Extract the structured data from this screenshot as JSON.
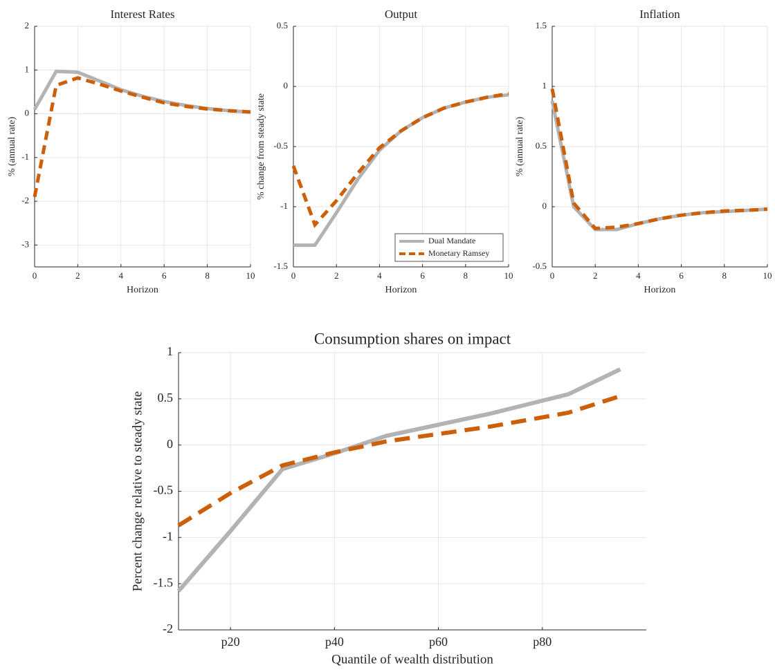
{
  "chart_data": [
    {
      "type": "line",
      "title": "Interest Rates",
      "xlabel": "Horizon",
      "ylabel": "% (annual rate)",
      "x": [
        0,
        1,
        2,
        3,
        4,
        5,
        6,
        7,
        8,
        9,
        10
      ],
      "series": [
        {
          "color": "#b3b3b3",
          "style": "solid",
          "values": [
            0.1,
            0.97,
            0.95,
            0.75,
            0.55,
            0.4,
            0.28,
            0.19,
            0.12,
            0.07,
            0.04
          ]
        },
        {
          "color": "#cc5f08",
          "style": "dashed",
          "values": [
            -1.9,
            0.65,
            0.82,
            0.68,
            0.52,
            0.38,
            0.25,
            0.17,
            0.11,
            0.07,
            0.04
          ]
        }
      ],
      "xlim": [
        0,
        10
      ],
      "xticks": [
        0,
        2,
        4,
        6,
        8,
        10
      ],
      "ylim": [
        -3.5,
        2
      ],
      "yticks": [
        -3,
        -2,
        -1,
        0,
        1,
        2
      ],
      "grid": true
    },
    {
      "type": "line",
      "title": "Output",
      "xlabel": "Horizon",
      "ylabel": "% change from steady state",
      "x": [
        0,
        1,
        2,
        3,
        4,
        5,
        6,
        7,
        8,
        9,
        10
      ],
      "series": [
        {
          "name": "Dual Mandate",
          "color": "#b3b3b3",
          "style": "solid",
          "values": [
            -1.32,
            -1.32,
            -1.05,
            -0.77,
            -0.53,
            -0.37,
            -0.26,
            -0.18,
            -0.13,
            -0.09,
            -0.07
          ]
        },
        {
          "name": "Monetary Ramsey",
          "color": "#cc5f08",
          "style": "dashed",
          "values": [
            -0.66,
            -1.15,
            -0.95,
            -0.72,
            -0.51,
            -0.37,
            -0.26,
            -0.18,
            -0.13,
            -0.09,
            -0.06
          ]
        }
      ],
      "xlim": [
        0,
        10
      ],
      "xticks": [
        0,
        2,
        4,
        6,
        8,
        10
      ],
      "ylim": [
        -1.5,
        0.5
      ],
      "yticks": [
        -1.5,
        -1,
        -0.5,
        0,
        0.5
      ],
      "grid": true,
      "legend": "lower right"
    },
    {
      "type": "line",
      "title": "Inflation",
      "xlabel": "Horizon",
      "ylabel": "% (annual rate)",
      "x": [
        0,
        1,
        2,
        3,
        4,
        5,
        6,
        7,
        8,
        9,
        10
      ],
      "series": [
        {
          "color": "#b3b3b3",
          "style": "solid",
          "values": [
            0.88,
            0.0,
            -0.19,
            -0.19,
            -0.14,
            -0.1,
            -0.07,
            -0.05,
            -0.04,
            -0.03,
            -0.02
          ]
        },
        {
          "color": "#cc5f08",
          "style": "dashed",
          "values": [
            0.98,
            0.03,
            -0.18,
            -0.17,
            -0.14,
            -0.1,
            -0.07,
            -0.05,
            -0.035,
            -0.03,
            -0.02
          ]
        }
      ],
      "xlim": [
        0,
        10
      ],
      "xticks": [
        0,
        2,
        4,
        6,
        8,
        10
      ],
      "ylim": [
        -0.5,
        1.5
      ],
      "yticks": [
        -0.5,
        0,
        0.5,
        1,
        1.5
      ],
      "grid": true
    },
    {
      "type": "line",
      "title": "Consumption shares on impact",
      "xlabel": "Quantile of wealth distribution",
      "ylabel": "Percent change relative to steady state",
      "x": [
        10,
        20,
        30,
        40,
        50,
        60,
        70,
        85,
        95
      ],
      "series": [
        {
          "color": "#b3b3b3",
          "style": "solid",
          "values": [
            -1.58,
            -0.93,
            -0.26,
            -0.09,
            0.1,
            0.22,
            0.34,
            0.55,
            0.82
          ]
        },
        {
          "color": "#cc5f08",
          "style": "dashed",
          "values": [
            -0.87,
            -0.52,
            -0.22,
            -0.08,
            0.04,
            0.12,
            0.2,
            0.35,
            0.53
          ]
        }
      ],
      "xlim": [
        10,
        100
      ],
      "xticks": [
        {
          "value": 20,
          "label": "p20"
        },
        {
          "value": 40,
          "label": "p40"
        },
        {
          "value": 60,
          "label": "p60"
        },
        {
          "value": 80,
          "label": "p80"
        }
      ],
      "ylim": [
        -2,
        1
      ],
      "yticks": [
        -2,
        -1.5,
        -1,
        -0.5,
        0,
        0.5,
        1
      ],
      "grid": true
    }
  ]
}
